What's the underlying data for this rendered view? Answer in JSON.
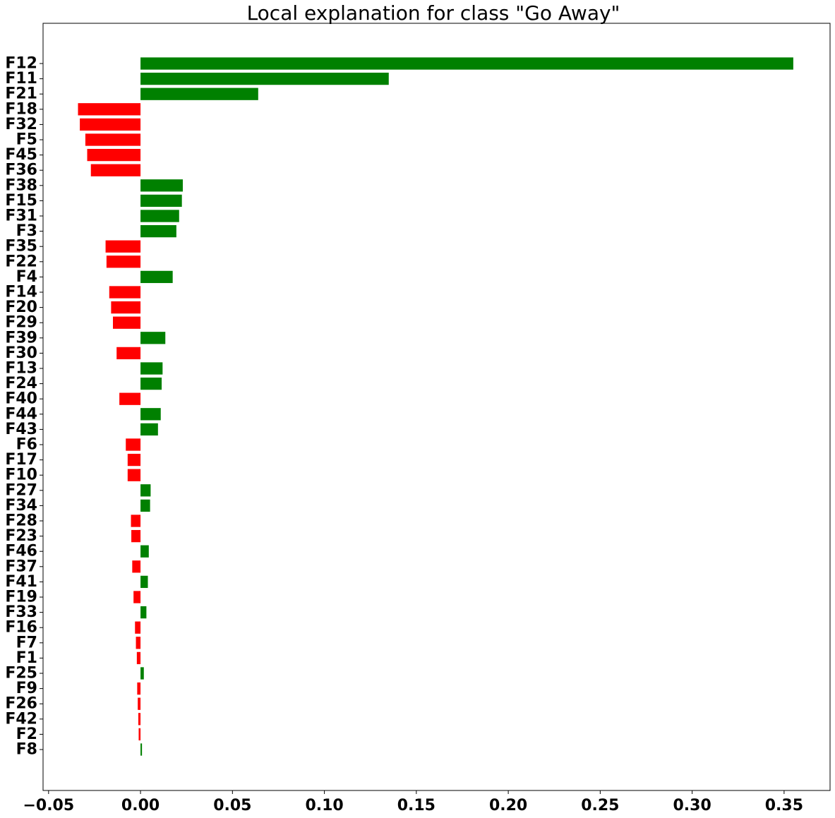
{
  "chart_data": {
    "type": "bar",
    "orientation": "horizontal",
    "title": "Local explanation for class \"Go Away\"",
    "xlabel": "",
    "ylabel": "",
    "xlim": [
      -0.053,
      0.375
    ],
    "grid": false,
    "legend": "none",
    "colors": {
      "positive": "#008000",
      "negative": "#ff0000"
    },
    "xticks": [
      -0.05,
      0.0,
      0.05,
      0.1,
      0.15,
      0.2,
      0.25,
      0.3,
      0.35
    ],
    "xtick_labels": [
      "−0.05",
      "0.00",
      "0.05",
      "0.10",
      "0.15",
      "0.20",
      "0.25",
      "0.30",
      "0.35"
    ],
    "categories": [
      "F12",
      "F11",
      "F21",
      "F18",
      "F32",
      "F5",
      "F45",
      "F36",
      "F38",
      "F15",
      "F31",
      "F3",
      "F35",
      "F22",
      "F4",
      "F14",
      "F20",
      "F29",
      "F39",
      "F30",
      "F13",
      "F24",
      "F40",
      "F44",
      "F43",
      "F6",
      "F17",
      "F10",
      "F27",
      "F34",
      "F28",
      "F23",
      "F46",
      "F37",
      "F41",
      "F19",
      "F33",
      "F16",
      "F7",
      "F1",
      "F25",
      "F9",
      "F26",
      "F42",
      "F2",
      "F8"
    ],
    "values": [
      0.355,
      0.135,
      0.064,
      -0.034,
      -0.033,
      -0.03,
      -0.029,
      -0.027,
      0.023,
      0.0225,
      0.021,
      0.0195,
      -0.019,
      -0.0185,
      0.0175,
      -0.017,
      -0.016,
      -0.015,
      0.0135,
      -0.013,
      0.012,
      0.0115,
      -0.0115,
      0.011,
      0.0095,
      -0.008,
      -0.007,
      -0.007,
      0.0055,
      0.0052,
      -0.0052,
      -0.005,
      0.0045,
      -0.0045,
      0.004,
      -0.0038,
      0.0032,
      -0.003,
      -0.0025,
      -0.002,
      0.0018,
      -0.0018,
      -0.0015,
      -0.0012,
      -0.001,
      0.0008
    ]
  }
}
